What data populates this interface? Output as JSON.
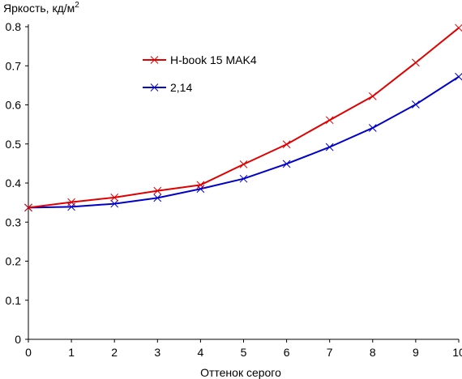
{
  "chart_data": {
    "type": "line",
    "title": "",
    "ylabel": "Яркость, кд/м",
    "ylabel_sup": "2",
    "xlabel": "Оттенок серого",
    "xlim": [
      0,
      10
    ],
    "ylim": [
      0,
      0.8
    ],
    "x_ticks": [
      "0",
      "1",
      "2",
      "3",
      "4",
      "5",
      "6",
      "7",
      "8",
      "9",
      "10"
    ],
    "y_ticks": [
      "0",
      "0.1",
      "0.2",
      "0.3",
      "0.4",
      "0.5",
      "0.6",
      "0.7",
      "0.8"
    ],
    "grid": false,
    "legend_position": "top-center",
    "x": [
      0,
      1,
      2,
      3,
      4,
      5,
      6,
      7,
      8,
      9,
      10
    ],
    "series": [
      {
        "name": "H-book 15 MAK4",
        "color": "#e00000",
        "marker": "x",
        "values": [
          0.337,
          0.351,
          0.363,
          0.38,
          0.395,
          0.448,
          0.499,
          0.561,
          0.622,
          0.708,
          0.797
        ]
      },
      {
        "name": "2,14",
        "color": "#0000c8",
        "marker": "x",
        "values": [
          0.337,
          0.339,
          0.347,
          0.362,
          0.385,
          0.411,
          0.449,
          0.492,
          0.541,
          0.601,
          0.672
        ]
      }
    ]
  }
}
